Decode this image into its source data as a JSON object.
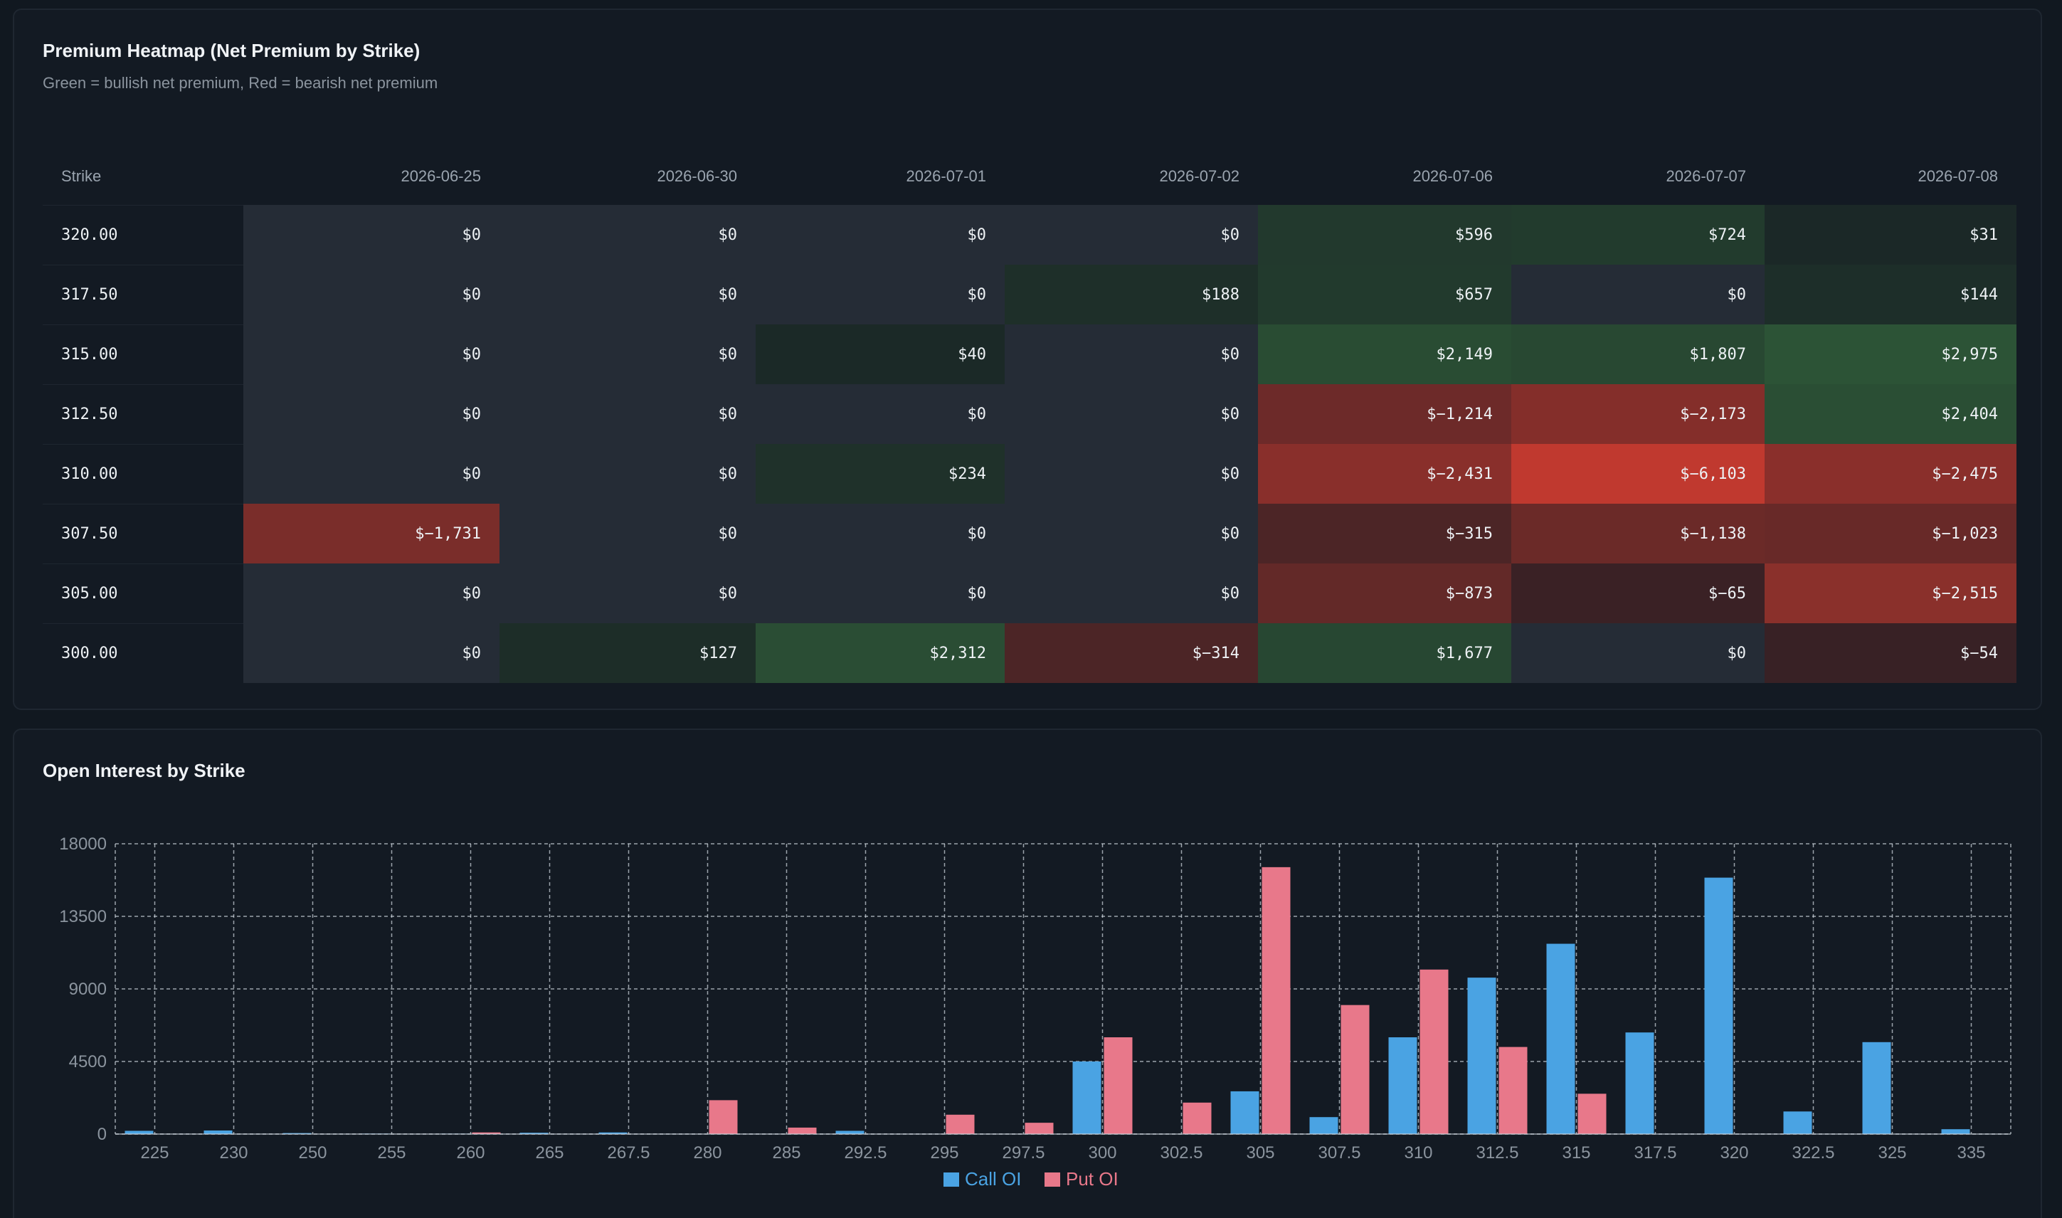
{
  "heatmap": {
    "title": "Premium Heatmap (Net Premium by Strike)",
    "subtitle": "Green = bullish net premium, Red = bearish net premium",
    "strike_header": "Strike",
    "columns": [
      "2026-06-25",
      "2026-06-30",
      "2026-07-01",
      "2026-07-02",
      "2026-07-06",
      "2026-07-07",
      "2026-07-08"
    ],
    "rows": [
      {
        "strike": "320.00",
        "values": [
          0,
          0,
          0,
          0,
          596,
          724,
          31
        ],
        "labels": [
          "$0",
          "$0",
          "$0",
          "$0",
          "$596",
          "$724",
          "$31"
        ]
      },
      {
        "strike": "317.50",
        "values": [
          0,
          0,
          0,
          188,
          657,
          0,
          144
        ],
        "labels": [
          "$0",
          "$0",
          "$0",
          "$188",
          "$657",
          "$0",
          "$144"
        ]
      },
      {
        "strike": "315.00",
        "values": [
          0,
          0,
          40,
          0,
          2149,
          1807,
          2975
        ],
        "labels": [
          "$0",
          "$0",
          "$40",
          "$0",
          "$2,149",
          "$1,807",
          "$2,975"
        ]
      },
      {
        "strike": "312.50",
        "values": [
          0,
          0,
          0,
          0,
          -1214,
          -2173,
          2404
        ],
        "labels": [
          "$0",
          "$0",
          "$0",
          "$0",
          "$−1,214",
          "$−2,173",
          "$2,404"
        ]
      },
      {
        "strike": "310.00",
        "values": [
          0,
          0,
          234,
          0,
          -2431,
          -6103,
          -2475
        ],
        "labels": [
          "$0",
          "$0",
          "$234",
          "$0",
          "$−2,431",
          "$−6,103",
          "$−2,475"
        ]
      },
      {
        "strike": "307.50",
        "values": [
          -1731,
          0,
          0,
          0,
          -315,
          -1138,
          -1023
        ],
        "labels": [
          "$−1,731",
          "$0",
          "$0",
          "$0",
          "$−315",
          "$−1,138",
          "$−1,023"
        ]
      },
      {
        "strike": "305.00",
        "values": [
          0,
          0,
          0,
          0,
          -873,
          -65,
          -2515
        ],
        "labels": [
          "$0",
          "$0",
          "$0",
          "$0",
          "$−873",
          "$−65",
          "$−2,515"
        ]
      },
      {
        "strike": "300.00",
        "values": [
          0,
          127,
          2312,
          -314,
          1677,
          0,
          -54
        ],
        "labels": [
          "$0",
          "$127",
          "$2,312",
          "$−314",
          "$1,677",
          "$0",
          "$−54"
        ]
      }
    ],
    "colors": {
      "zero": "#252c36",
      "positive": "#2c5336",
      "negative": "#c0392f",
      "cell_base": "#161b22"
    }
  },
  "oi": {
    "title": "Open Interest by Strike",
    "chart_data": {
      "type": "bar",
      "title": "Open Interest by Strike",
      "categories": [
        "225",
        "230",
        "250",
        "255",
        "260",
        "265",
        "267.5",
        "280",
        "285",
        "292.5",
        "295",
        "297.5",
        "300",
        "302.5",
        "305",
        "307.5",
        "310",
        "312.5",
        "315",
        "317.5",
        "320",
        "322.5",
        "325",
        "335"
      ],
      "series": [
        {
          "name": "Call OI",
          "color": "#4aa3e3",
          "values": [
            200,
            220,
            60,
            20,
            10,
            80,
            100,
            0,
            0,
            200,
            0,
            0,
            4500,
            0,
            2650,
            1050,
            6000,
            9700,
            11800,
            6300,
            15900,
            1400,
            5700,
            300
          ]
        },
        {
          "name": "Put OI",
          "color": "#e8788a",
          "values": [
            0,
            0,
            0,
            0,
            100,
            0,
            0,
            2100,
            400,
            0,
            1200,
            700,
            6000,
            1950,
            16550,
            8000,
            10200,
            5400,
            2500,
            0,
            0,
            0,
            0,
            0
          ]
        }
      ],
      "ylim": [
        0,
        18000
      ],
      "yticks": [
        0,
        4500,
        9000,
        13500,
        18000
      ],
      "grid": true,
      "legend": "bottom-center"
    }
  }
}
